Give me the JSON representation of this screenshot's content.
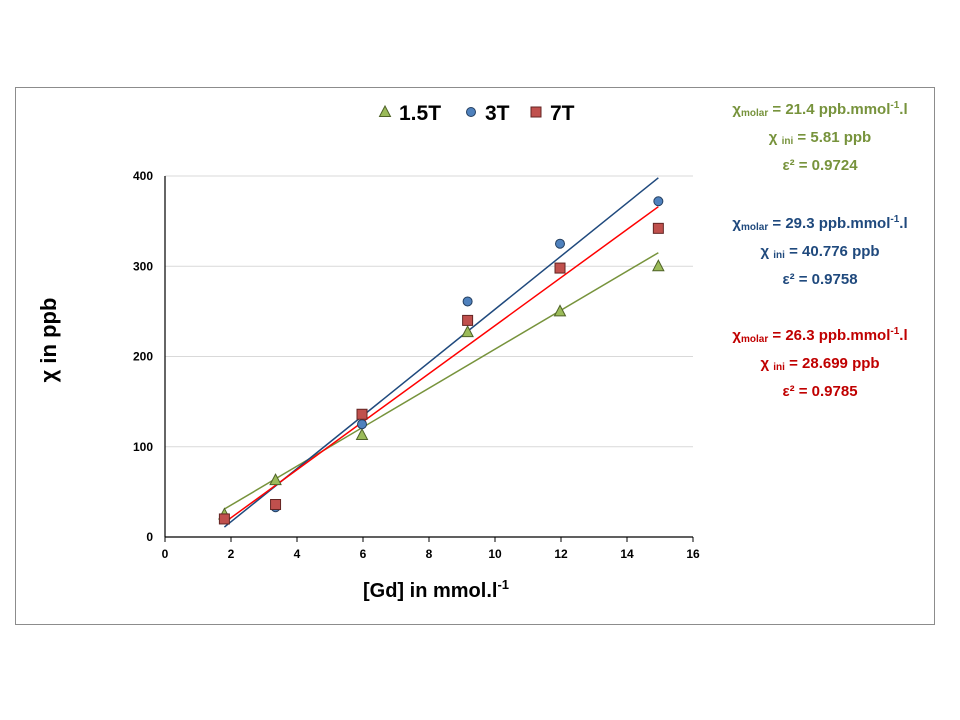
{
  "chart_data": {
    "type": "scatter",
    "xlabel": "[Gd] in mmol.l",
    "xlabel_sup": "-1",
    "ylabel": "χ in ppb",
    "xlim": [
      0,
      16
    ],
    "ylim": [
      0,
      400
    ],
    "x_ticks": [
      0,
      2,
      4,
      6,
      8,
      10,
      12,
      14,
      16
    ],
    "y_ticks": [
      0,
      100,
      200,
      300,
      400
    ],
    "grid": "horizontal",
    "legend": "top",
    "series": [
      {
        "name": "1.5T",
        "marker": "triangle",
        "color": "#9bbb59",
        "edge_color": "#4f6228",
        "line_color": "#77933c",
        "x": [
          1.8,
          3.35,
          5.97,
          9.17,
          11.97,
          14.95
        ],
        "y": [
          25,
          63,
          113,
          227,
          250,
          300
        ],
        "fit": [
          [
            1.8,
            31
          ],
          [
            14.95,
            315
          ]
        ]
      },
      {
        "name": "3T",
        "marker": "circle",
        "color": "#4f81bd",
        "edge_color": "#243f60",
        "line_color": "#1f497d",
        "x": [
          1.8,
          3.35,
          5.97,
          9.17,
          11.97,
          14.95
        ],
        "y": [
          20,
          33,
          125,
          261,
          325,
          372
        ],
        "fit": [
          [
            1.8,
            11
          ],
          [
            14.95,
            398
          ]
        ]
      },
      {
        "name": "7T",
        "marker": "square",
        "color": "#c0504d",
        "edge_color": "#632523",
        "line_color": "#ff0000",
        "x": [
          1.8,
          3.35,
          5.97,
          9.17,
          11.97,
          14.95
        ],
        "y": [
          20,
          36,
          136,
          240,
          298,
          342
        ],
        "fit": [
          [
            1.8,
            16
          ],
          [
            14.95,
            366
          ]
        ]
      }
    ]
  },
  "annotations": {
    "s15t": {
      "chi": "χ",
      "chi_sub": "molar",
      "molar_value": " = 21.4 ppb.mmol",
      "unit_sup": "-1",
      "unit_tail": ".l",
      "ini_chi": "χ ",
      "ini_sub": "ini",
      "ini_value": " = 5.81 ppb",
      "eps": "ε² = 0.9724"
    },
    "s3t": {
      "chi": "χ",
      "chi_sub": "molar",
      "molar_value": " = 29.3 ppb.mmol",
      "unit_sup": "-1",
      "unit_tail": ".l",
      "ini_chi": "χ ",
      "ini_sub": "ini",
      "ini_value": " = 40.776 ppb",
      "eps": "ε² = 0.9758"
    },
    "s7t": {
      "chi": "χ",
      "chi_sub": "molar",
      "molar_value": " = 26.3 ppb.mmol",
      "unit_sup": "-1",
      "unit_tail": ".l",
      "ini_chi": "χ ",
      "ini_sub": "ini",
      "ini_value": " = 28.699 ppb",
      "eps": "ε² = 0.9785"
    }
  }
}
